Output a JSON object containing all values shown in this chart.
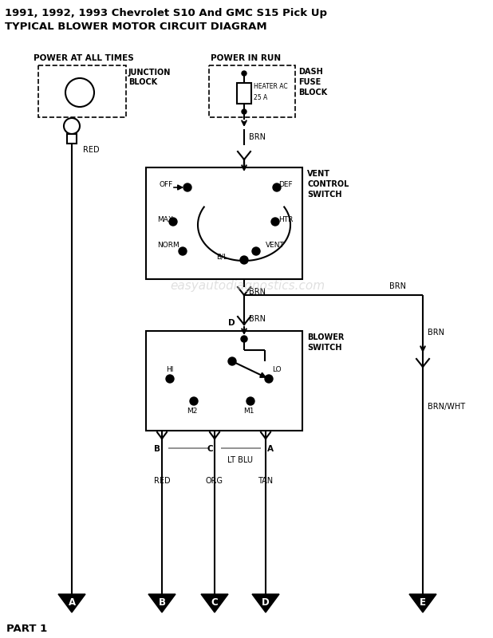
{
  "title1": "1991, 1992, 1993 Chevrolet S10 And GMC S15 Pick Up",
  "title2": "TYPICAL BLOWER MOTOR CIRCUIT DIAGRAM",
  "watermark": "easyautodiagnostics.com",
  "bg": "#ffffff",
  "header_left": "POWER AT ALL TIMES",
  "header_right": "POWER IN RUN",
  "jb1": "JUNCTION",
  "jb2": "BLOCK",
  "dfb1": "DASH",
  "dfb2": "FUSE",
  "dfb3": "BLOCK",
  "fuse1": "HEATER AC",
  "fuse2": "25 A",
  "brn": "BRN",
  "red": "RED",
  "org": "ORG",
  "tan": "TAN",
  "lt_blu": "LT BLU",
  "brn_wht": "BRN/WHT",
  "vent_lbl": [
    "VENT",
    "CONTROL",
    "SWITCH"
  ],
  "blower_lbl": [
    "BLOWER",
    "SWITCH"
  ],
  "part": "PART 1",
  "D_label": "D",
  "B_label": "B",
  "C_label": "C",
  "A_label": "A",
  "off": "OFF",
  "def": "DEF",
  "max": "MAX",
  "htr": "HTR",
  "norm": "NORM",
  "bl": "B/L",
  "vent": "VENT",
  "hi": "HI",
  "lo": "LO",
  "m2": "M2",
  "m1": "M1"
}
